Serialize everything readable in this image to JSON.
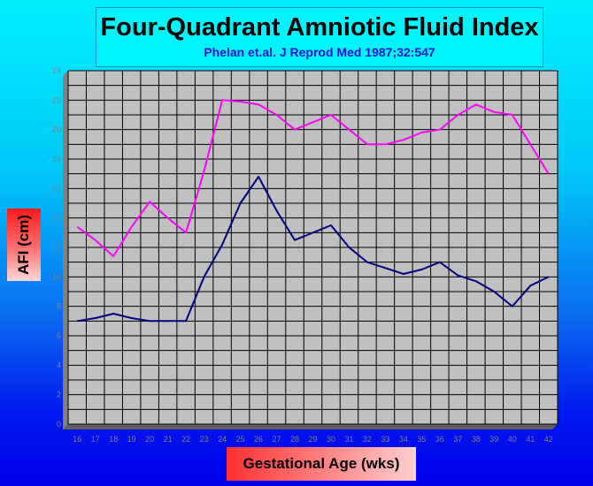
{
  "chart_data": {
    "type": "line",
    "title": "Four-Quadrant Amniotic Fluid Index",
    "subtitle": "Phelan et.al. J Reprod Med 1987;32:547",
    "xlabel": "Gestational Age (wks)",
    "ylabel": "AFI (cm)",
    "x": [
      16,
      17,
      18,
      19,
      20,
      21,
      22,
      23,
      24,
      25,
      26,
      27,
      28,
      29,
      30,
      31,
      32,
      33,
      34,
      35,
      36,
      37,
      38,
      39,
      40,
      41,
      42
    ],
    "xlim": [
      16,
      42
    ],
    "ylim": [
      0,
      24
    ],
    "yticks": [
      0,
      2,
      4,
      6,
      8,
      10,
      12,
      14,
      16,
      18,
      20,
      22,
      24
    ],
    "grid": true,
    "series": [
      {
        "color": "#ff00ff",
        "values": [
          13.4,
          12.5,
          11.4,
          13.4,
          15.1,
          14.0,
          13.0,
          17.2,
          22.0,
          21.9,
          21.7,
          21.0,
          20.0,
          20.5,
          21.0,
          20.0,
          19.0,
          19.0,
          19.3,
          19.8,
          20.0,
          21.0,
          21.7,
          21.2,
          21.0,
          19.0,
          17.0
        ]
      },
      {
        "color": "#000080",
        "values": [
          7.0,
          7.2,
          7.5,
          7.2,
          7.0,
          7.0,
          7.0,
          10.0,
          12.2,
          15.0,
          16.8,
          14.5,
          12.5,
          13.0,
          13.5,
          12.0,
          11.0,
          10.6,
          10.2,
          10.5,
          11.0,
          10.1,
          9.7,
          9.0,
          8.0,
          9.4,
          10.0
        ]
      }
    ],
    "colors": {
      "plot_background": "#c0c0c0",
      "grid": "#000000",
      "tick_label": "#808080"
    }
  }
}
